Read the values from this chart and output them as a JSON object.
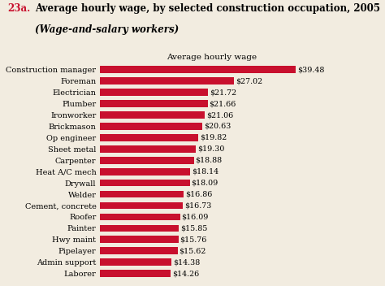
{
  "title_number": "23a.",
  "title_main": "Average hourly wage, by selected construction occupation, 2005",
  "title_sub": "(Wage-and-salary workers)",
  "axis_label": "Average hourly wage",
  "bar_color": "#C8102E",
  "categories": [
    "Laborer",
    "Admin support",
    "Pipelayer",
    "Hwy maint",
    "Painter",
    "Roofer",
    "Cement, concrete",
    "Welder",
    "Drywall",
    "Heat A/C mech",
    "Carpenter",
    "Sheet metal",
    "Op engineer",
    "Brickmason",
    "Ironworker",
    "Plumber",
    "Electrician",
    "Foreman",
    "Construction manager"
  ],
  "values": [
    14.26,
    14.38,
    15.62,
    15.76,
    15.85,
    16.09,
    16.73,
    16.86,
    18.09,
    18.14,
    18.88,
    19.3,
    19.82,
    20.63,
    21.06,
    21.66,
    21.72,
    27.02,
    39.48
  ],
  "labels": [
    "$14.26",
    "$14.38",
    "$15.62",
    "$15.76",
    "$15.85",
    "$16.09",
    "$16.73",
    "$16.86",
    "$18.09",
    "$18.14",
    "$18.88",
    "$19.30",
    "$19.82",
    "$20.63",
    "$21.06",
    "$21.66",
    "$21.72",
    "$27.02",
    "$39.48"
  ],
  "xlim": [
    0,
    45
  ],
  "background_color": "#f2ece0",
  "title_fontsize": 8.5,
  "label_fontsize": 7.0,
  "value_fontsize": 6.8,
  "axis_label_fontsize": 7.5
}
